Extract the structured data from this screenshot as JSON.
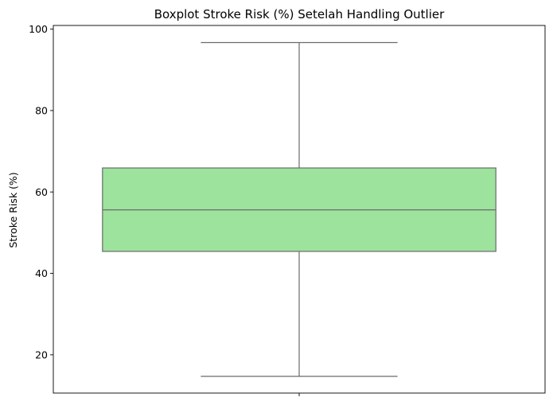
{
  "chart_data": {
    "type": "boxplot",
    "title": "Boxplot Stroke Risk (%) Setelah Handling Outlier",
    "xlabel": "",
    "ylabel": "Stroke Risk (%)",
    "ylim": [
      10.6,
      100.9
    ],
    "yticks": [
      20,
      40,
      60,
      80,
      100
    ],
    "grid": false,
    "series": [
      {
        "whisker_low": 14.7,
        "q1": 45.4,
        "median": 55.6,
        "q3": 65.9,
        "whisker_high": 96.7
      }
    ],
    "colors": {
      "box_fill": "#9de29d",
      "line": "#6b6b6b"
    }
  }
}
